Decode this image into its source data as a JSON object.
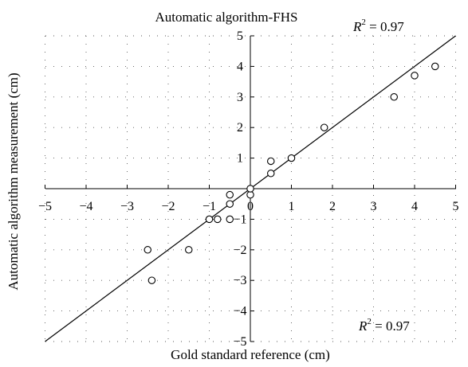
{
  "chart_data": {
    "type": "scatter",
    "title": "Automatic algorithm-FHS",
    "xlabel": "Gold standard reference (cm)",
    "ylabel": "Automatic algorithm measurement (cm)",
    "xlim": [
      -5,
      5
    ],
    "ylim": [
      -5,
      5
    ],
    "x_ticks": [
      -5,
      -4,
      -3,
      -2,
      -1,
      0,
      1,
      2,
      3,
      4,
      5
    ],
    "y_ticks": [
      -5,
      -4,
      -3,
      -2,
      -1,
      0,
      1,
      2,
      3,
      4,
      5
    ],
    "x_tick_labels": [
      "−5",
      "−4",
      "−3",
      "−2",
      "−1",
      "0",
      "1",
      "2",
      "3",
      "4",
      "5"
    ],
    "y_tick_labels": [
      "−5",
      "−4",
      "−3",
      "−2",
      "−1",
      "0",
      "1",
      "2",
      "3",
      "4",
      "5"
    ],
    "grid": "dotted",
    "series": [
      {
        "marker": "open-circle",
        "points": [
          {
            "x": -2.5,
            "y": -2.0
          },
          {
            "x": -2.4,
            "y": -3.0
          },
          {
            "x": -1.5,
            "y": -2.0
          },
          {
            "x": -1.0,
            "y": -1.0
          },
          {
            "x": -0.8,
            "y": -1.0
          },
          {
            "x": -0.5,
            "y": -1.0
          },
          {
            "x": -0.5,
            "y": -0.5
          },
          {
            "x": -0.5,
            "y": -0.2
          },
          {
            "x": 0.0,
            "y": -0.2
          },
          {
            "x": 0.0,
            "y": 0.0
          },
          {
            "x": 0.5,
            "y": 0.5
          },
          {
            "x": 0.5,
            "y": 0.9
          },
          {
            "x": 1.0,
            "y": 1.0
          },
          {
            "x": 1.8,
            "y": 2.0
          },
          {
            "x": 3.5,
            "y": 3.0
          },
          {
            "x": 4.0,
            "y": 3.7
          },
          {
            "x": 4.5,
            "y": 4.0
          }
        ]
      }
    ],
    "fit_line": {
      "slope": 1,
      "intercept": 0,
      "x_range": [
        -5,
        5
      ]
    },
    "annotations": [
      {
        "r2_symbol": "R",
        "r2_exp": "2",
        "r2_text": " = 0.97"
      },
      {
        "r2_symbol": "R",
        "r2_exp": "2",
        "r2_text": " = 0.97"
      }
    ]
  }
}
